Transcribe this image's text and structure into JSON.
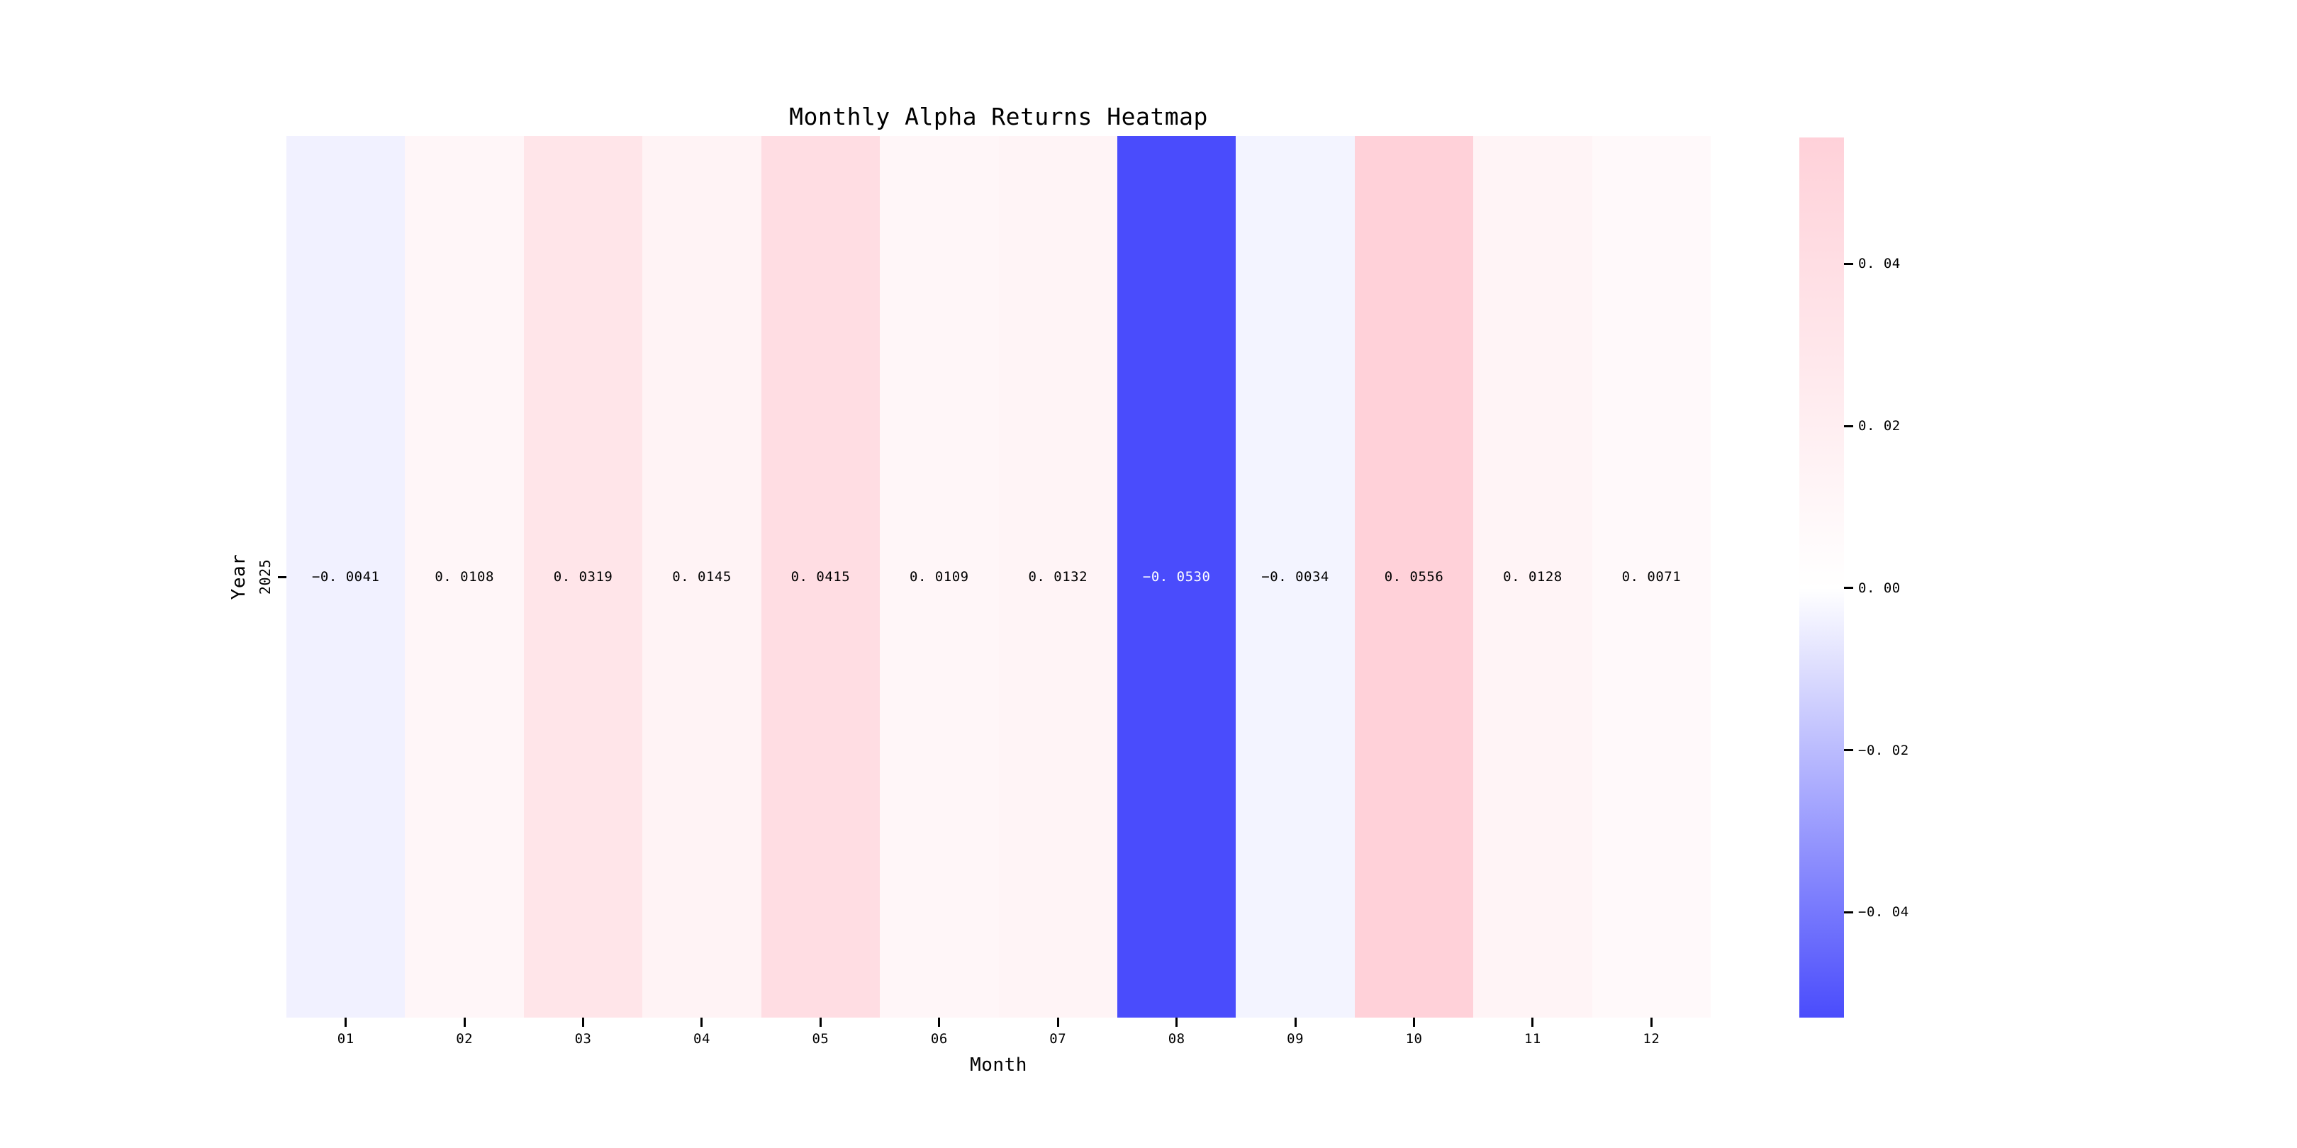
{
  "chart_data": {
    "type": "heatmap",
    "title": "Monthly Alpha Returns Heatmap",
    "xlabel": "Month",
    "ylabel": "Year",
    "x_ticks": [
      "01",
      "02",
      "03",
      "04",
      "05",
      "06",
      "07",
      "08",
      "09",
      "10",
      "11",
      "12"
    ],
    "y_ticks": [
      "2025"
    ],
    "series": [
      {
        "name": "2025",
        "values": [
          -0.0041,
          0.0108,
          0.0319,
          0.0145,
          0.0415,
          0.0109,
          0.0132,
          -0.053,
          -0.0034,
          0.0556,
          0.0128,
          0.0071
        ]
      }
    ],
    "value_labels": [
      "−0. 0041",
      "0. 0108",
      "0. 0319",
      "0. 0145",
      "0. 0415",
      "0. 0109",
      "0. 0132",
      "−0. 0530",
      "−0. 0034",
      "0. 0556",
      "0. 0128",
      "0. 0071"
    ],
    "vmin": -0.053,
    "vmax": 0.0556,
    "grid": false,
    "legend_position": "none",
    "colormap": {
      "negative_end": "#4a4cfc",
      "zero": "#ffffff",
      "positive_end": "#ffd1d9"
    },
    "cell_text_color": "#000000",
    "cell_text_color_on_dark": "#ffffff",
    "background": "#ffffff",
    "colorbar_ticks": [
      {
        "label": "0. 04",
        "value": 0.04
      },
      {
        "label": "0. 02",
        "value": 0.02
      },
      {
        "label": "0. 00",
        "value": 0.0
      },
      {
        "label": "−0. 02",
        "value": -0.02
      },
      {
        "label": "−0. 04",
        "value": -0.04
      }
    ]
  }
}
